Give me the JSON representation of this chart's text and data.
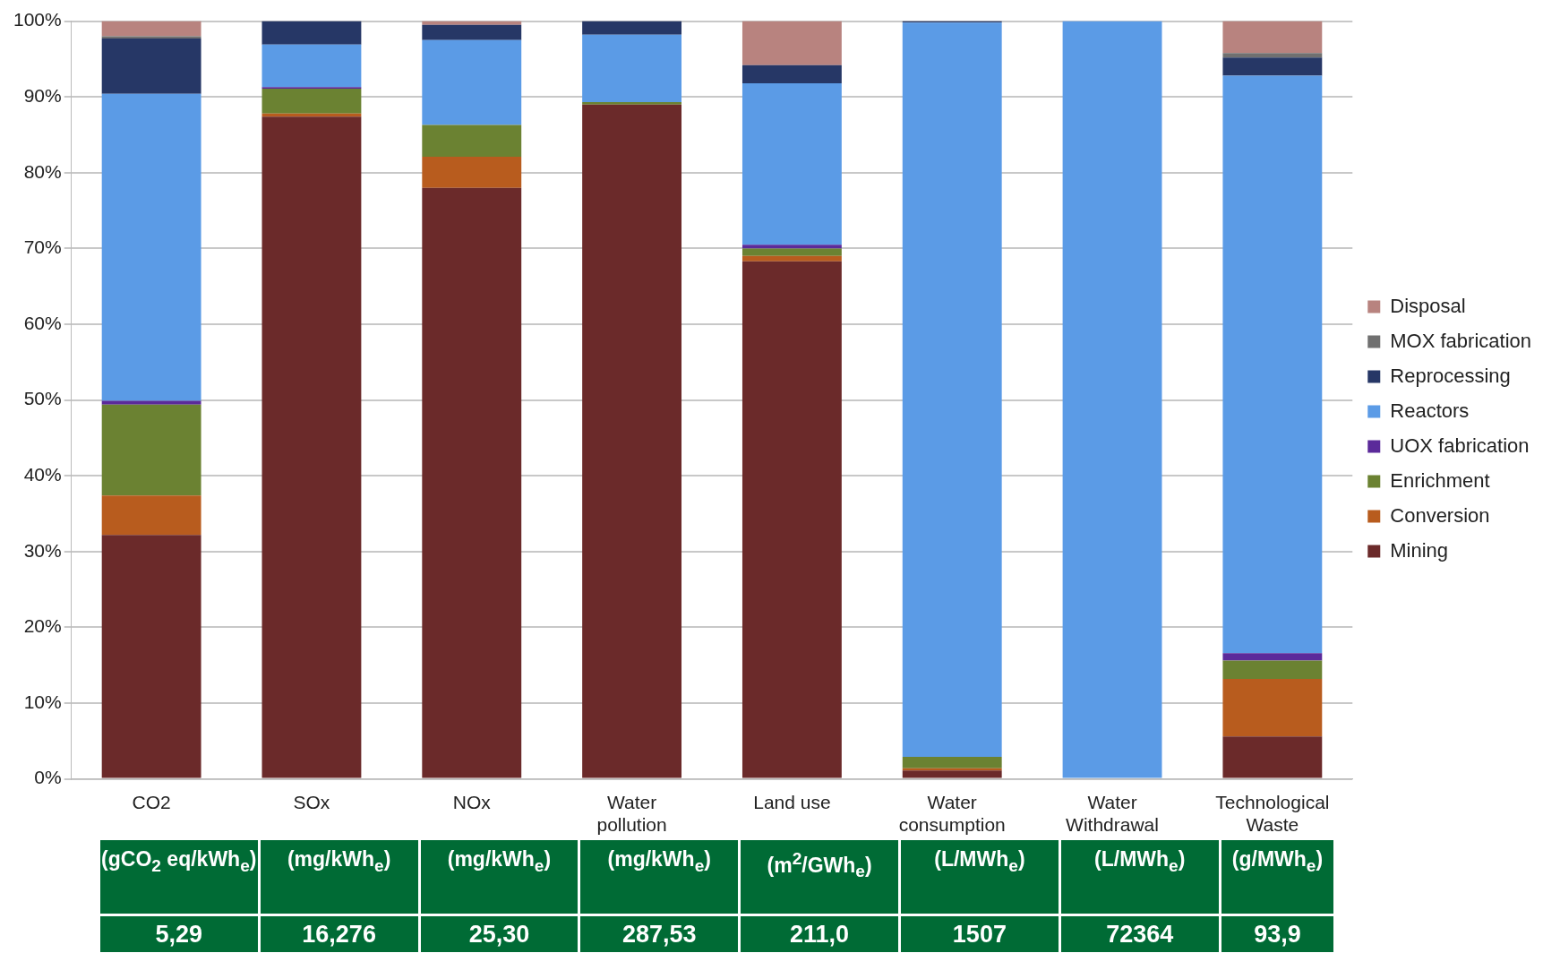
{
  "chart_data": {
    "type": "bar",
    "stacked": true,
    "grid": "y",
    "legend": "right",
    "categories": [
      "CO2",
      "SOx",
      "NOx",
      "Water pollution",
      "Land use",
      "Water consumption",
      "Water Withdrawal",
      "Technological Waste"
    ],
    "ylim": [
      0,
      100
    ],
    "yticks": [
      {
        "value": 0,
        "label": "0%"
      },
      {
        "value": 10,
        "label": "10%"
      },
      {
        "value": 20,
        "label": "20%"
      },
      {
        "value": 30,
        "label": "30%"
      },
      {
        "value": 40,
        "label": "40%"
      },
      {
        "value": 50,
        "label": "50%"
      },
      {
        "value": 60,
        "label": "60%"
      },
      {
        "value": 70,
        "label": "70%"
      },
      {
        "value": 80,
        "label": "80%"
      },
      {
        "value": 90,
        "label": "90%"
      },
      {
        "value": 100,
        "label": "100%"
      }
    ],
    "series": [
      {
        "name": "Mining",
        "color": "#6b2a2a",
        "values": [
          32.2,
          87.4,
          78,
          89,
          68.3,
          1.1,
          0,
          5.6
        ]
      },
      {
        "name": "Conversion",
        "color": "#b85c1e",
        "values": [
          5.2,
          0.4,
          4.1,
          0,
          0.7,
          0.3,
          0,
          7.6
        ]
      },
      {
        "name": "Enrichment",
        "color": "#6b8232",
        "values": [
          12,
          3.3,
          4.2,
          0.3,
          1,
          1.5,
          0,
          2.4
        ]
      },
      {
        "name": "UOX fabrication",
        "color": "#5b2a9a",
        "values": [
          0.5,
          0.2,
          0,
          0,
          0.5,
          0,
          0,
          1
        ]
      },
      {
        "name": "Reactors",
        "color": "#5b9be6",
        "values": [
          40.5,
          5.6,
          11.2,
          8.9,
          21.3,
          96.9,
          100,
          76.2
        ]
      },
      {
        "name": "Reprocessing",
        "color": "#263766",
        "values": [
          7.3,
          3.1,
          2,
          1.8,
          2.4,
          0.2,
          0,
          2.4
        ]
      },
      {
        "name": "MOX fabrication",
        "color": "#707070",
        "values": [
          0.3,
          0,
          0,
          0,
          0,
          0,
          0,
          0.6
        ]
      },
      {
        "name": "Disposal",
        "color": "#b8837f",
        "values": [
          2,
          0,
          0.5,
          0,
          5.8,
          0,
          0,
          4.2
        ]
      }
    ],
    "annotations": [
      "(gCO$_{2}$ eq/kWh$_{e}$)",
      "(mg/kWh$_{e}$)",
      "(mg/kWh$_{e}$)",
      "(mg/kWh$_{e}$)",
      "(m$^{2}$/GWh$_{e}$)",
      "(L/MWh$_{e}$)",
      "(L/MWh$_{e}$)",
      "(g/MWh$_{e}$)",
      "5,29",
      "16,276",
      "25,30",
      "287,53",
      "211,0",
      "1507",
      "72364",
      "93,9"
    ]
  }
}
